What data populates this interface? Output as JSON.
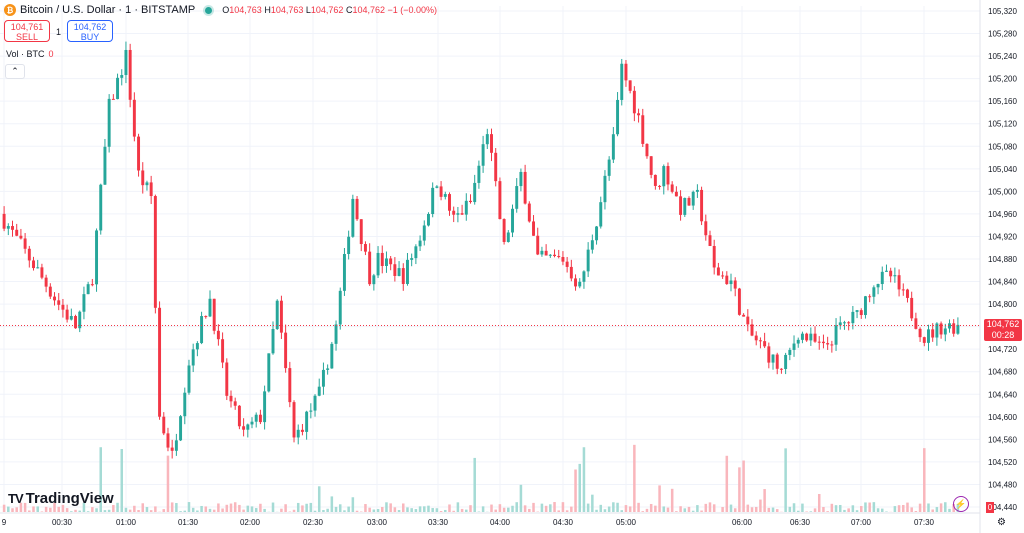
{
  "header": {
    "coin_icon": "bitcoin-icon",
    "symbol": "Bitcoin / U.S. Dollar · 1 · BITSTAMP",
    "ohlc": [
      {
        "k": "O",
        "v": "104,763"
      },
      {
        "k": "H",
        "v": "104,763"
      },
      {
        "k": "L",
        "v": "104,762"
      },
      {
        "k": "C",
        "v": "104,762"
      }
    ],
    "change": "−1 (−0.00%)"
  },
  "trade": {
    "sell_price": "104,761",
    "sell_label": "SELL",
    "quantity": "1",
    "buy_price": "104,762",
    "buy_label": "BUY"
  },
  "volume_legend": {
    "label": "Vol · BTC",
    "value": "0"
  },
  "collapse_icon": "chevron-up-icon",
  "logo": {
    "mark": "TV",
    "text": "TradingView"
  },
  "price_tag": {
    "price": "104,762",
    "countdown": "00:28"
  },
  "volume_tag": "0",
  "settings_icon": "gear-icon",
  "colors": {
    "up": "#26a69a",
    "down": "#f23645",
    "volume_up": "#a5dbd5",
    "volume_down": "#f9b6bc",
    "grid": "#f0f3fa",
    "axis_text": "#131722"
  },
  "chart_data": {
    "type": "candlestick",
    "interval": "1m",
    "xlabels": [
      "9",
      "00:30",
      "01:00",
      "01:30",
      "02:00",
      "02:30",
      "03:00",
      "03:30",
      "04:00",
      "04:30",
      "05:00",
      "06:00",
      "06:30",
      "07:00",
      "07:30"
    ],
    "yticks": [
      "105,320",
      "105,280",
      "105,240",
      "105,200",
      "105,160",
      "105,120",
      "105,080",
      "105,040",
      "105,000",
      "104,960",
      "104,920",
      "104,880",
      "104,840",
      "104,800",
      "104,760",
      "104,720",
      "104,680",
      "104,640",
      "104,600",
      "104,560",
      "104,520",
      "104,480",
      "104,440"
    ],
    "ylim": [
      104430,
      105340
    ],
    "last_price": 104762,
    "grid": true,
    "price_path": [
      [
        0,
        104960
      ],
      [
        8,
        104870
      ],
      [
        14,
        104800
      ],
      [
        18,
        104760
      ],
      [
        22,
        104850
      ],
      [
        26,
        105150
      ],
      [
        30,
        105240
      ],
      [
        33,
        105030
      ],
      [
        36,
        104990
      ],
      [
        38,
        104600
      ],
      [
        41,
        104530
      ],
      [
        45,
        104700
      ],
      [
        50,
        104810
      ],
      [
        54,
        104640
      ],
      [
        58,
        104570
      ],
      [
        62,
        104600
      ],
      [
        66,
        104800
      ],
      [
        70,
        104560
      ],
      [
        76,
        104640
      ],
      [
        80,
        104760
      ],
      [
        84,
        104990
      ],
      [
        88,
        104850
      ],
      [
        90,
        104880
      ],
      [
        96,
        104850
      ],
      [
        100,
        104920
      ],
      [
        104,
        105020
      ],
      [
        108,
        104950
      ],
      [
        112,
        104980
      ],
      [
        116,
        105110
      ],
      [
        120,
        104900
      ],
      [
        124,
        105030
      ],
      [
        128,
        104880
      ],
      [
        134,
        104880
      ],
      [
        138,
        104830
      ],
      [
        142,
        104950
      ],
      [
        146,
        105090
      ],
      [
        148,
        105220
      ],
      [
        152,
        105130
      ],
      [
        156,
        105000
      ],
      [
        158,
        105040
      ],
      [
        162,
        104970
      ],
      [
        166,
        104990
      ],
      [
        170,
        104860
      ],
      [
        174,
        104840
      ],
      [
        178,
        104750
      ],
      [
        182,
        104720
      ],
      [
        186,
        104680
      ],
      [
        190,
        104750
      ],
      [
        196,
        104720
      ],
      [
        200,
        104760
      ],
      [
        204,
        104780
      ],
      [
        208,
        104840
      ],
      [
        212,
        104850
      ],
      [
        216,
        104800
      ],
      [
        220,
        104740
      ],
      [
        224,
        104760
      ],
      [
        228,
        104762
      ]
    ]
  }
}
